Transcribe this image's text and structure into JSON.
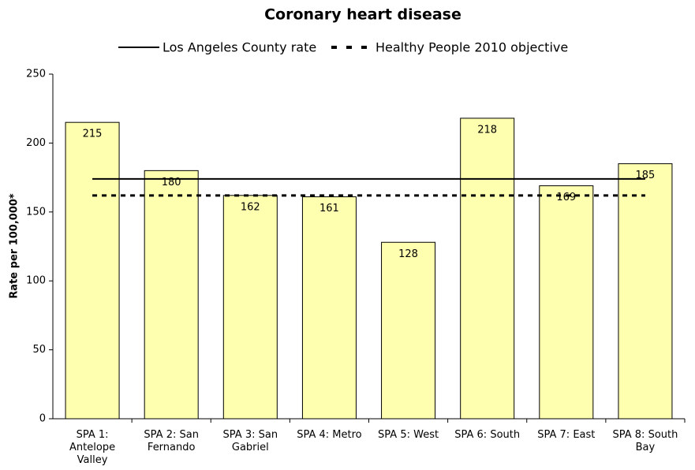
{
  "chart_data": {
    "type": "bar",
    "title": "Coronary heart disease",
    "y_label": "Rate per 100,000*",
    "categories": [
      "SPA 1: Antelope Valley",
      "SPA 2: San Fernando",
      "SPA 3: San Gabriel",
      "SPA 4: Metro",
      "SPA 5: West",
      "SPA 6: South",
      "SPA 7: East",
      "SPA 8: South Bay"
    ],
    "values": [
      215,
      180,
      162,
      161,
      128,
      218,
      169,
      185
    ],
    "color": "#ffffb0",
    "reference_lines": [
      {
        "name": "Los Angeles County rate",
        "value": 174,
        "style": "solid",
        "color": "#000000"
      },
      {
        "name": "Healthy People 2010 objective",
        "value": 162,
        "style": "dashed",
        "color": "#000000"
      }
    ],
    "ylim": [
      0,
      250
    ],
    "yticks": [
      0,
      50,
      100,
      150,
      200,
      250
    ],
    "grid": false
  }
}
